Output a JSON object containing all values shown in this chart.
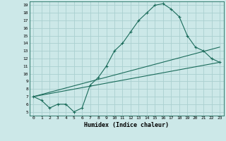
{
  "xlabel": "Humidex (Indice chaleur)",
  "bg_color": "#cce8e8",
  "grid_color": "#aad0d0",
  "line_color": "#1a6b5a",
  "xlim": [
    -0.5,
    23.5
  ],
  "ylim": [
    4.5,
    19.5
  ],
  "xticks": [
    0,
    1,
    2,
    3,
    4,
    5,
    6,
    7,
    8,
    9,
    10,
    11,
    12,
    13,
    14,
    15,
    16,
    17,
    18,
    19,
    20,
    21,
    22,
    23
  ],
  "yticks": [
    5,
    6,
    7,
    8,
    9,
    10,
    11,
    12,
    13,
    14,
    15,
    16,
    17,
    18,
    19
  ],
  "main_x": [
    0,
    1,
    2,
    3,
    4,
    5,
    6,
    7,
    8,
    9,
    10,
    11,
    12,
    13,
    14,
    15,
    16,
    17,
    18,
    19,
    20,
    21,
    22,
    23
  ],
  "main_y": [
    7.0,
    6.5,
    5.5,
    6.0,
    6.0,
    5.0,
    5.5,
    8.5,
    9.5,
    11.0,
    13.0,
    14.0,
    15.5,
    17.0,
    18.0,
    19.0,
    19.2,
    18.5,
    17.5,
    15.0,
    13.5,
    13.0,
    12.0,
    11.5
  ],
  "line2_x": [
    0,
    23
  ],
  "line2_y": [
    7.0,
    13.5
  ],
  "line3_x": [
    0,
    23
  ],
  "line3_y": [
    7.0,
    11.5
  ]
}
